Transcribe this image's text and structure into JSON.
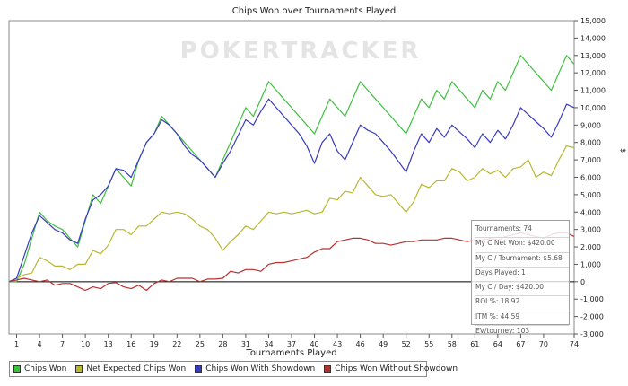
{
  "chart_data": {
    "type": "line",
    "title": "Chips Won over Tournaments Played",
    "xlabel": "Tournaments Played",
    "ylabel": "$",
    "xlim": [
      0,
      74
    ],
    "ylim": [
      -3000,
      15000
    ],
    "x_ticks": [
      1,
      4,
      7,
      10,
      13,
      16,
      19,
      22,
      25,
      28,
      31,
      34,
      37,
      40,
      43,
      46,
      49,
      52,
      55,
      58,
      61,
      64,
      67,
      70,
      74
    ],
    "y_ticks": [
      -3000,
      -2000,
      -1000,
      0,
      1000,
      2000,
      3000,
      4000,
      5000,
      6000,
      7000,
      8000,
      9000,
      10000,
      11000,
      12000,
      13000,
      14000,
      15000
    ],
    "y_tick_labels": [
      "-3,000",
      "-2,000",
      "-1,000",
      "0",
      "1,000",
      "2,000",
      "3,000",
      "4,000",
      "5,000",
      "6,000",
      "7,000",
      "8,000",
      "9,000",
      "10,000",
      "11,000",
      "12,000",
      "13,000",
      "14,000",
      "15,000"
    ],
    "watermark": "POKERTRACKER",
    "series": [
      {
        "name": "Chips Won",
        "color": "#3fbf3f",
        "points": [
          [
            0,
            0
          ],
          [
            1,
            0
          ],
          [
            2,
            1000
          ],
          [
            3,
            2500
          ],
          [
            4,
            4000
          ],
          [
            5,
            3500
          ],
          [
            6,
            3200
          ],
          [
            7,
            3000
          ],
          [
            8,
            2500
          ],
          [
            9,
            2000
          ],
          [
            10,
            3500
          ],
          [
            11,
            5000
          ],
          [
            12,
            4500
          ],
          [
            13,
            5500
          ],
          [
            14,
            6500
          ],
          [
            15,
            6000
          ],
          [
            16,
            5500
          ],
          [
            17,
            7000
          ],
          [
            18,
            8000
          ],
          [
            19,
            8500
          ],
          [
            20,
            9500
          ],
          [
            21,
            9000
          ],
          [
            22,
            8500
          ],
          [
            23,
            8000
          ],
          [
            24,
            7500
          ],
          [
            25,
            7000
          ],
          [
            26,
            6500
          ],
          [
            27,
            6000
          ],
          [
            28,
            7000
          ],
          [
            29,
            8000
          ],
          [
            30,
            9000
          ],
          [
            31,
            10000
          ],
          [
            32,
            9500
          ],
          [
            33,
            10500
          ],
          [
            34,
            11500
          ],
          [
            35,
            11000
          ],
          [
            36,
            10500
          ],
          [
            37,
            10000
          ],
          [
            38,
            9500
          ],
          [
            39,
            9000
          ],
          [
            40,
            8500
          ],
          [
            41,
            9500
          ],
          [
            42,
            10500
          ],
          [
            43,
            10000
          ],
          [
            44,
            9500
          ],
          [
            45,
            10500
          ],
          [
            46,
            11500
          ],
          [
            47,
            11000
          ],
          [
            48,
            10500
          ],
          [
            49,
            10000
          ],
          [
            50,
            9500
          ],
          [
            51,
            9000
          ],
          [
            52,
            8500
          ],
          [
            53,
            9500
          ],
          [
            54,
            10500
          ],
          [
            55,
            10000
          ],
          [
            56,
            11000
          ],
          [
            57,
            10500
          ],
          [
            58,
            11500
          ],
          [
            59,
            11000
          ],
          [
            60,
            10500
          ],
          [
            61,
            10000
          ],
          [
            62,
            11000
          ],
          [
            63,
            10500
          ],
          [
            64,
            11500
          ],
          [
            65,
            11000
          ],
          [
            66,
            12000
          ],
          [
            67,
            13000
          ],
          [
            68,
            12500
          ],
          [
            69,
            12000
          ],
          [
            70,
            11500
          ],
          [
            71,
            11000
          ],
          [
            72,
            12000
          ],
          [
            73,
            13000
          ],
          [
            74,
            12500
          ]
        ]
      },
      {
        "name": "Net Expected Chips Won",
        "color": "#b8b830",
        "points": [
          [
            0,
            0
          ],
          [
            1,
            200
          ],
          [
            2,
            400
          ],
          [
            3,
            500
          ],
          [
            4,
            1400
          ],
          [
            5,
            1200
          ],
          [
            6,
            900
          ],
          [
            7,
            900
          ],
          [
            8,
            700
          ],
          [
            9,
            1000
          ],
          [
            10,
            1000
          ],
          [
            11,
            1800
          ],
          [
            12,
            1600
          ],
          [
            13,
            2100
          ],
          [
            14,
            3000
          ],
          [
            15,
            3000
          ],
          [
            16,
            2700
          ],
          [
            17,
            3200
          ],
          [
            18,
            3200
          ],
          [
            19,
            3600
          ],
          [
            20,
            4000
          ],
          [
            21,
            3900
          ],
          [
            22,
            4000
          ],
          [
            23,
            3900
          ],
          [
            24,
            3600
          ],
          [
            25,
            3200
          ],
          [
            26,
            3000
          ],
          [
            27,
            2500
          ],
          [
            28,
            1800
          ],
          [
            29,
            2300
          ],
          [
            30,
            2700
          ],
          [
            31,
            3200
          ],
          [
            32,
            3000
          ],
          [
            33,
            3500
          ],
          [
            34,
            4000
          ],
          [
            35,
            3900
          ],
          [
            36,
            4000
          ],
          [
            37,
            3900
          ],
          [
            38,
            4000
          ],
          [
            39,
            4100
          ],
          [
            40,
            3900
          ],
          [
            41,
            4000
          ],
          [
            42,
            4800
          ],
          [
            43,
            4700
          ],
          [
            44,
            5200
          ],
          [
            45,
            5100
          ],
          [
            46,
            6000
          ],
          [
            47,
            5500
          ],
          [
            48,
            5000
          ],
          [
            49,
            4900
          ],
          [
            50,
            5000
          ],
          [
            51,
            4500
          ],
          [
            52,
            4000
          ],
          [
            53,
            4600
          ],
          [
            54,
            5600
          ],
          [
            55,
            5400
          ],
          [
            56,
            5800
          ],
          [
            57,
            5800
          ],
          [
            58,
            6500
          ],
          [
            59,
            6300
          ],
          [
            60,
            5800
          ],
          [
            61,
            6000
          ],
          [
            62,
            6500
          ],
          [
            63,
            6200
          ],
          [
            64,
            6400
          ],
          [
            65,
            6000
          ],
          [
            66,
            6500
          ],
          [
            67,
            6600
          ],
          [
            68,
            7000
          ],
          [
            69,
            6000
          ],
          [
            70,
            6300
          ],
          [
            71,
            6100
          ],
          [
            72,
            7000
          ],
          [
            73,
            7800
          ],
          [
            74,
            7700
          ]
        ]
      },
      {
        "name": "Chips Won With Showdown",
        "color": "#3a3ac0",
        "points": [
          [
            0,
            0
          ],
          [
            1,
            200
          ],
          [
            2,
            1500
          ],
          [
            3,
            2800
          ],
          [
            4,
            3800
          ],
          [
            5,
            3400
          ],
          [
            6,
            3000
          ],
          [
            7,
            2800
          ],
          [
            8,
            2400
          ],
          [
            9,
            2200
          ],
          [
            10,
            3600
          ],
          [
            11,
            4700
          ],
          [
            12,
            5000
          ],
          [
            13,
            5500
          ],
          [
            14,
            6500
          ],
          [
            15,
            6400
          ],
          [
            16,
            6000
          ],
          [
            17,
            7000
          ],
          [
            18,
            8000
          ],
          [
            19,
            8500
          ],
          [
            20,
            9300
          ],
          [
            21,
            9000
          ],
          [
            22,
            8500
          ],
          [
            23,
            7800
          ],
          [
            24,
            7300
          ],
          [
            25,
            7000
          ],
          [
            26,
            6500
          ],
          [
            27,
            6000
          ],
          [
            28,
            6800
          ],
          [
            29,
            7500
          ],
          [
            30,
            8400
          ],
          [
            31,
            9300
          ],
          [
            32,
            9000
          ],
          [
            33,
            9800
          ],
          [
            34,
            10500
          ],
          [
            35,
            10000
          ],
          [
            36,
            9500
          ],
          [
            37,
            9000
          ],
          [
            38,
            8500
          ],
          [
            39,
            7800
          ],
          [
            40,
            6800
          ],
          [
            41,
            8000
          ],
          [
            42,
            8500
          ],
          [
            43,
            7500
          ],
          [
            44,
            7000
          ],
          [
            45,
            8000
          ],
          [
            46,
            9000
          ],
          [
            47,
            8700
          ],
          [
            48,
            8500
          ],
          [
            49,
            8000
          ],
          [
            50,
            7500
          ],
          [
            51,
            6900
          ],
          [
            52,
            6300
          ],
          [
            53,
            7500
          ],
          [
            54,
            8500
          ],
          [
            55,
            8000
          ],
          [
            56,
            8800
          ],
          [
            57,
            8300
          ],
          [
            58,
            9000
          ],
          [
            59,
            8600
          ],
          [
            60,
            8200
          ],
          [
            61,
            7700
          ],
          [
            62,
            8500
          ],
          [
            63,
            8000
          ],
          [
            64,
            8700
          ],
          [
            65,
            8200
          ],
          [
            66,
            9000
          ],
          [
            67,
            10000
          ],
          [
            68,
            9600
          ],
          [
            69,
            9200
          ],
          [
            70,
            8800
          ],
          [
            71,
            8300
          ],
          [
            72,
            9200
          ],
          [
            73,
            10200
          ],
          [
            74,
            10000
          ]
        ]
      },
      {
        "name": "Chips Won Without Showdown",
        "color": "#b83030",
        "points": [
          [
            0,
            0
          ],
          [
            1,
            100
          ],
          [
            2,
            200
          ],
          [
            3,
            100
          ],
          [
            4,
            0
          ],
          [
            5,
            100
          ],
          [
            6,
            -200
          ],
          [
            7,
            -100
          ],
          [
            8,
            -100
          ],
          [
            9,
            -300
          ],
          [
            10,
            -500
          ],
          [
            11,
            -300
          ],
          [
            12,
            -400
          ],
          [
            13,
            -100
          ],
          [
            14,
            -50
          ],
          [
            15,
            -300
          ],
          [
            16,
            -400
          ],
          [
            17,
            -200
          ],
          [
            18,
            -500
          ],
          [
            19,
            -100
          ],
          [
            20,
            100
          ],
          [
            21,
            0
          ],
          [
            22,
            200
          ],
          [
            23,
            200
          ],
          [
            24,
            200
          ],
          [
            25,
            0
          ],
          [
            26,
            150
          ],
          [
            27,
            150
          ],
          [
            28,
            200
          ],
          [
            29,
            600
          ],
          [
            30,
            500
          ],
          [
            31,
            700
          ],
          [
            32,
            700
          ],
          [
            33,
            600
          ],
          [
            34,
            1000
          ],
          [
            35,
            1100
          ],
          [
            36,
            1100
          ],
          [
            37,
            1200
          ],
          [
            38,
            1300
          ],
          [
            39,
            1400
          ],
          [
            40,
            1700
          ],
          [
            41,
            1900
          ],
          [
            42,
            1900
          ],
          [
            43,
            2300
          ],
          [
            44,
            2400
          ],
          [
            45,
            2500
          ],
          [
            46,
            2500
          ],
          [
            47,
            2400
          ],
          [
            48,
            2200
          ],
          [
            49,
            2200
          ],
          [
            50,
            2100
          ],
          [
            51,
            2200
          ],
          [
            52,
            2300
          ],
          [
            53,
            2300
          ],
          [
            54,
            2400
          ],
          [
            55,
            2400
          ],
          [
            56,
            2400
          ],
          [
            57,
            2500
          ],
          [
            58,
            2500
          ],
          [
            59,
            2400
          ],
          [
            60,
            2300
          ],
          [
            61,
            2400
          ],
          [
            62,
            2400
          ],
          [
            63,
            2500
          ],
          [
            64,
            2400
          ],
          [
            65,
            2600
          ],
          [
            66,
            2700
          ],
          [
            67,
            2800
          ],
          [
            68,
            2700
          ],
          [
            69,
            2600
          ],
          [
            70,
            2500
          ],
          [
            71,
            2700
          ],
          [
            72,
            2800
          ],
          [
            73,
            2800
          ],
          [
            74,
            2600
          ]
        ]
      }
    ]
  },
  "stats": [
    "Tournaments: 74",
    "My C Net Won: $420.00",
    "My C / Tournament: $5.68",
    "Days Played: 1",
    "My C / Day: $420.00",
    "ROI %: 18.92",
    "ITM %: 44.59",
    "EV/tourney: 103"
  ]
}
